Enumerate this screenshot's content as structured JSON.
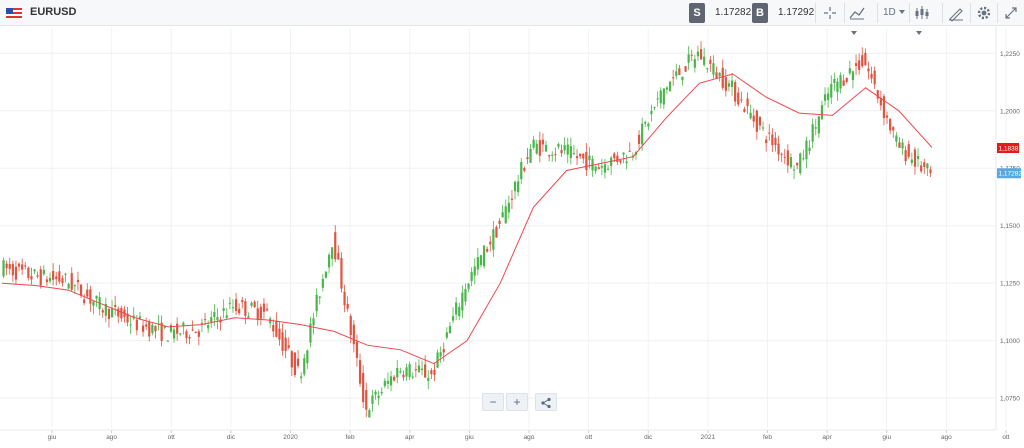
{
  "header": {
    "symbol": "EURUSD",
    "sell_label": "S",
    "sell_price": "1.17282",
    "buy_label": "B",
    "buy_price": "1.17292",
    "timeframe": "1D"
  },
  "price_axis": {
    "ticks": [
      "1,2250",
      "1,2000",
      "1,1750",
      "1,1500",
      "1,1250",
      "1,1000",
      "1,0750"
    ],
    "tick_values": [
      1.225,
      1.2,
      1.175,
      1.15,
      1.125,
      1.1,
      1.075
    ],
    "red_tag": "1,1838",
    "red_tag_value": 1.1838,
    "current_tag": "1,17282",
    "current_value": 1.17282
  },
  "time_axis": {
    "labels": [
      "giu",
      "ago",
      "ott",
      "dic",
      "2020",
      "feb",
      "apr",
      "giu",
      "ago",
      "ott",
      "dic",
      "2021",
      "feb",
      "apr",
      "giu",
      "ago",
      "ott"
    ]
  },
  "colors": {
    "up": "#49b64a",
    "down": "#e0533f",
    "ma": "#f0474e",
    "red_tag": "#e31b1b",
    "current_tag": "#5aa6e0"
  },
  "chart_data": {
    "type": "line",
    "title": "EURUSD",
    "series": [
      {
        "name": "EURUSD",
        "x": [
          "2019-05",
          "2019-06",
          "2019-07",
          "2019-08",
          "2019-09",
          "2019-10",
          "2019-11",
          "2019-12",
          "2020-01",
          "2020-02",
          "2020-03a",
          "2020-03b",
          "2020-04",
          "2020-05",
          "2020-06",
          "2020-07",
          "2020-08",
          "2020-09",
          "2020-10",
          "2020-11",
          "2020-12",
          "2021-01",
          "2021-02",
          "2021-03",
          "2021-04",
          "2021-05",
          "2021-06",
          "2021-07",
          "2021-08"
        ],
        "values": [
          1.132,
          1.128,
          1.126,
          1.115,
          1.108,
          1.103,
          1.105,
          1.115,
          1.112,
          1.085,
          1.145,
          1.07,
          1.088,
          1.085,
          1.124,
          1.15,
          1.185,
          1.182,
          1.176,
          1.182,
          1.21,
          1.225,
          1.21,
          1.19,
          1.175,
          1.21,
          1.222,
          1.185,
          1.172
        ]
      },
      {
        "name": "",
        "values": [
          1.125,
          1.124,
          1.122,
          1.116,
          1.11,
          1.106,
          1.107,
          1.11,
          1.109,
          1.107,
          1.104,
          1.098,
          1.096,
          1.09,
          1.1,
          1.125,
          1.158,
          1.174,
          1.177,
          1.18,
          1.197,
          1.212,
          1.216,
          1.206,
          1.199,
          1.198,
          1.21,
          1.2,
          1.184
        ]
      }
    ],
    "ylim": [
      1.062,
      1.236
    ],
    "grid": true
  }
}
